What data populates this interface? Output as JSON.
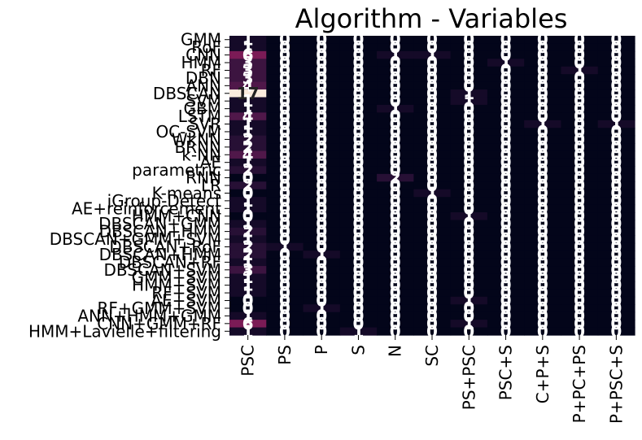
{
  "chart_data": {
    "type": "heatmap",
    "title": "Algorithm - Variables",
    "xlabel": "",
    "ylabel": "",
    "columns": [
      "PSC",
      "PS",
      "P",
      "S",
      "N",
      "SC",
      "PS+PSC",
      "PSC+S",
      "C+P+S",
      "P+PC+PS",
      "P+PSC+S"
    ],
    "rows": [
      "GMM",
      "RoF",
      "CNN",
      "HMM",
      "RF",
      "DBN",
      "ANN",
      "DBSCAN",
      "SVM",
      "GBM",
      "LSTM",
      "SVR",
      "OC-SVM",
      "WkNN",
      "BRNN",
      "k-NN",
      "AE",
      "parametric",
      "RNN",
      "LR",
      "K-means",
      "iGroup-Detect",
      "AE+reinforcement",
      "HMM+CNN",
      "DBSCAN+GMM",
      "DBSCAN+HMM",
      "DBSCAN+GMM+SVM",
      "DBSCAN+RoF",
      "DBSCAN+HMM",
      "DBSCAN+RF",
      "DBSCAN+SVM",
      "GMM+SVM",
      "HMM+SVM",
      "RF+SVM",
      "AE+SVM",
      "RF+GMM+SVM",
      "ANN+HMM+GMM",
      "CNN+GMM+RF",
      "HMM+Lavielle+filtering"
    ],
    "values": [
      [
        1,
        0,
        0,
        0,
        0,
        0,
        0,
        0,
        0,
        0,
        0
      ],
      [
        1,
        0,
        0,
        0,
        0,
        0,
        0,
        0,
        0,
        0,
        0
      ],
      [
        6,
        0,
        0,
        0,
        1,
        1,
        0,
        0,
        0,
        0,
        0
      ],
      [
        3,
        0,
        0,
        0,
        0,
        0,
        0,
        1,
        0,
        0,
        0
      ],
      [
        3,
        0,
        0,
        0,
        0,
        0,
        0,
        0,
        0,
        1,
        0
      ],
      [
        3,
        0,
        0,
        0,
        0,
        0,
        0,
        0,
        0,
        0,
        0
      ],
      [
        4,
        0,
        0,
        0,
        0,
        0,
        0,
        0,
        0,
        0,
        0
      ],
      [
        17,
        0,
        0,
        0,
        0,
        0,
        1,
        0,
        0,
        0,
        0
      ],
      [
        1,
        0,
        0,
        0,
        0,
        0,
        1,
        0,
        0,
        0,
        0
      ],
      [
        1,
        0,
        0,
        0,
        1,
        0,
        0,
        0,
        0,
        0,
        0
      ],
      [
        4,
        0,
        0,
        0,
        0,
        0,
        0,
        0,
        0,
        0,
        0
      ],
      [
        1,
        0,
        0,
        0,
        0,
        0,
        0,
        0,
        1,
        0,
        1
      ],
      [
        1,
        0,
        0,
        0,
        0,
        0,
        0,
        0,
        0,
        0,
        0
      ],
      [
        2,
        0,
        0,
        0,
        0,
        0,
        0,
        0,
        0,
        0,
        0
      ],
      [
        2,
        0,
        0,
        0,
        0,
        0,
        0,
        0,
        0,
        0,
        0
      ],
      [
        4,
        0,
        0,
        0,
        0,
        0,
        0,
        0,
        0,
        0,
        0
      ],
      [
        1,
        0,
        0,
        0,
        0,
        0,
        0,
        0,
        0,
        0,
        0
      ],
      [
        2,
        0,
        0,
        0,
        0,
        0,
        0,
        0,
        0,
        0,
        0
      ],
      [
        0,
        0,
        0,
        0,
        2,
        0,
        0,
        0,
        0,
        0,
        0
      ],
      [
        2,
        0,
        0,
        0,
        0,
        0,
        0,
        0,
        0,
        0,
        0
      ],
      [
        0,
        0,
        0,
        0,
        0,
        1,
        0,
        0,
        0,
        0,
        0
      ],
      [
        1,
        0,
        0,
        0,
        0,
        0,
        0,
        0,
        0,
        0,
        0
      ],
      [
        1,
        0,
        0,
        0,
        0,
        0,
        0,
        0,
        0,
        0,
        0
      ],
      [
        0,
        0,
        0,
        0,
        0,
        0,
        1,
        0,
        0,
        0,
        0
      ],
      [
        1,
        0,
        0,
        0,
        0,
        0,
        0,
        0,
        0,
        0,
        0
      ],
      [
        2,
        0,
        0,
        0,
        0,
        0,
        0,
        0,
        0,
        0,
        0
      ],
      [
        1,
        0,
        0,
        0,
        0,
        0,
        0,
        0,
        0,
        0,
        0
      ],
      [
        2,
        1,
        0,
        0,
        0,
        0,
        0,
        0,
        0,
        0,
        0
      ],
      [
        2,
        0,
        1,
        0,
        0,
        0,
        0,
        0,
        0,
        0,
        0
      ],
      [
        1,
        0,
        0,
        0,
        0,
        0,
        0,
        0,
        0,
        0,
        0
      ],
      [
        3,
        0,
        0,
        0,
        0,
        0,
        0,
        0,
        0,
        0,
        0
      ],
      [
        1,
        0,
        0,
        0,
        0,
        0,
        0,
        0,
        0,
        0,
        0
      ],
      [
        1,
        0,
        0,
        0,
        0,
        0,
        0,
        0,
        0,
        0,
        0
      ],
      [
        1,
        0,
        0,
        0,
        0,
        0,
        0,
        0,
        0,
        0,
        0
      ],
      [
        0,
        0,
        0,
        0,
        0,
        0,
        1,
        0,
        0,
        0,
        0
      ],
      [
        0,
        0,
        1,
        0,
        0,
        0,
        0,
        0,
        0,
        0,
        0
      ],
      [
        1,
        0,
        0,
        0,
        0,
        0,
        0,
        0,
        0,
        0,
        0
      ],
      [
        6,
        0,
        0,
        0,
        0,
        0,
        1,
        0,
        0,
        0,
        0
      ],
      [
        1,
        0,
        0,
        1,
        0,
        0,
        0,
        0,
        0,
        0,
        0
      ]
    ],
    "vmin": 0,
    "vmax": 17,
    "grid": false,
    "legend": "none",
    "colormap": "rocket",
    "cell_text_color": "#ffffff"
  }
}
